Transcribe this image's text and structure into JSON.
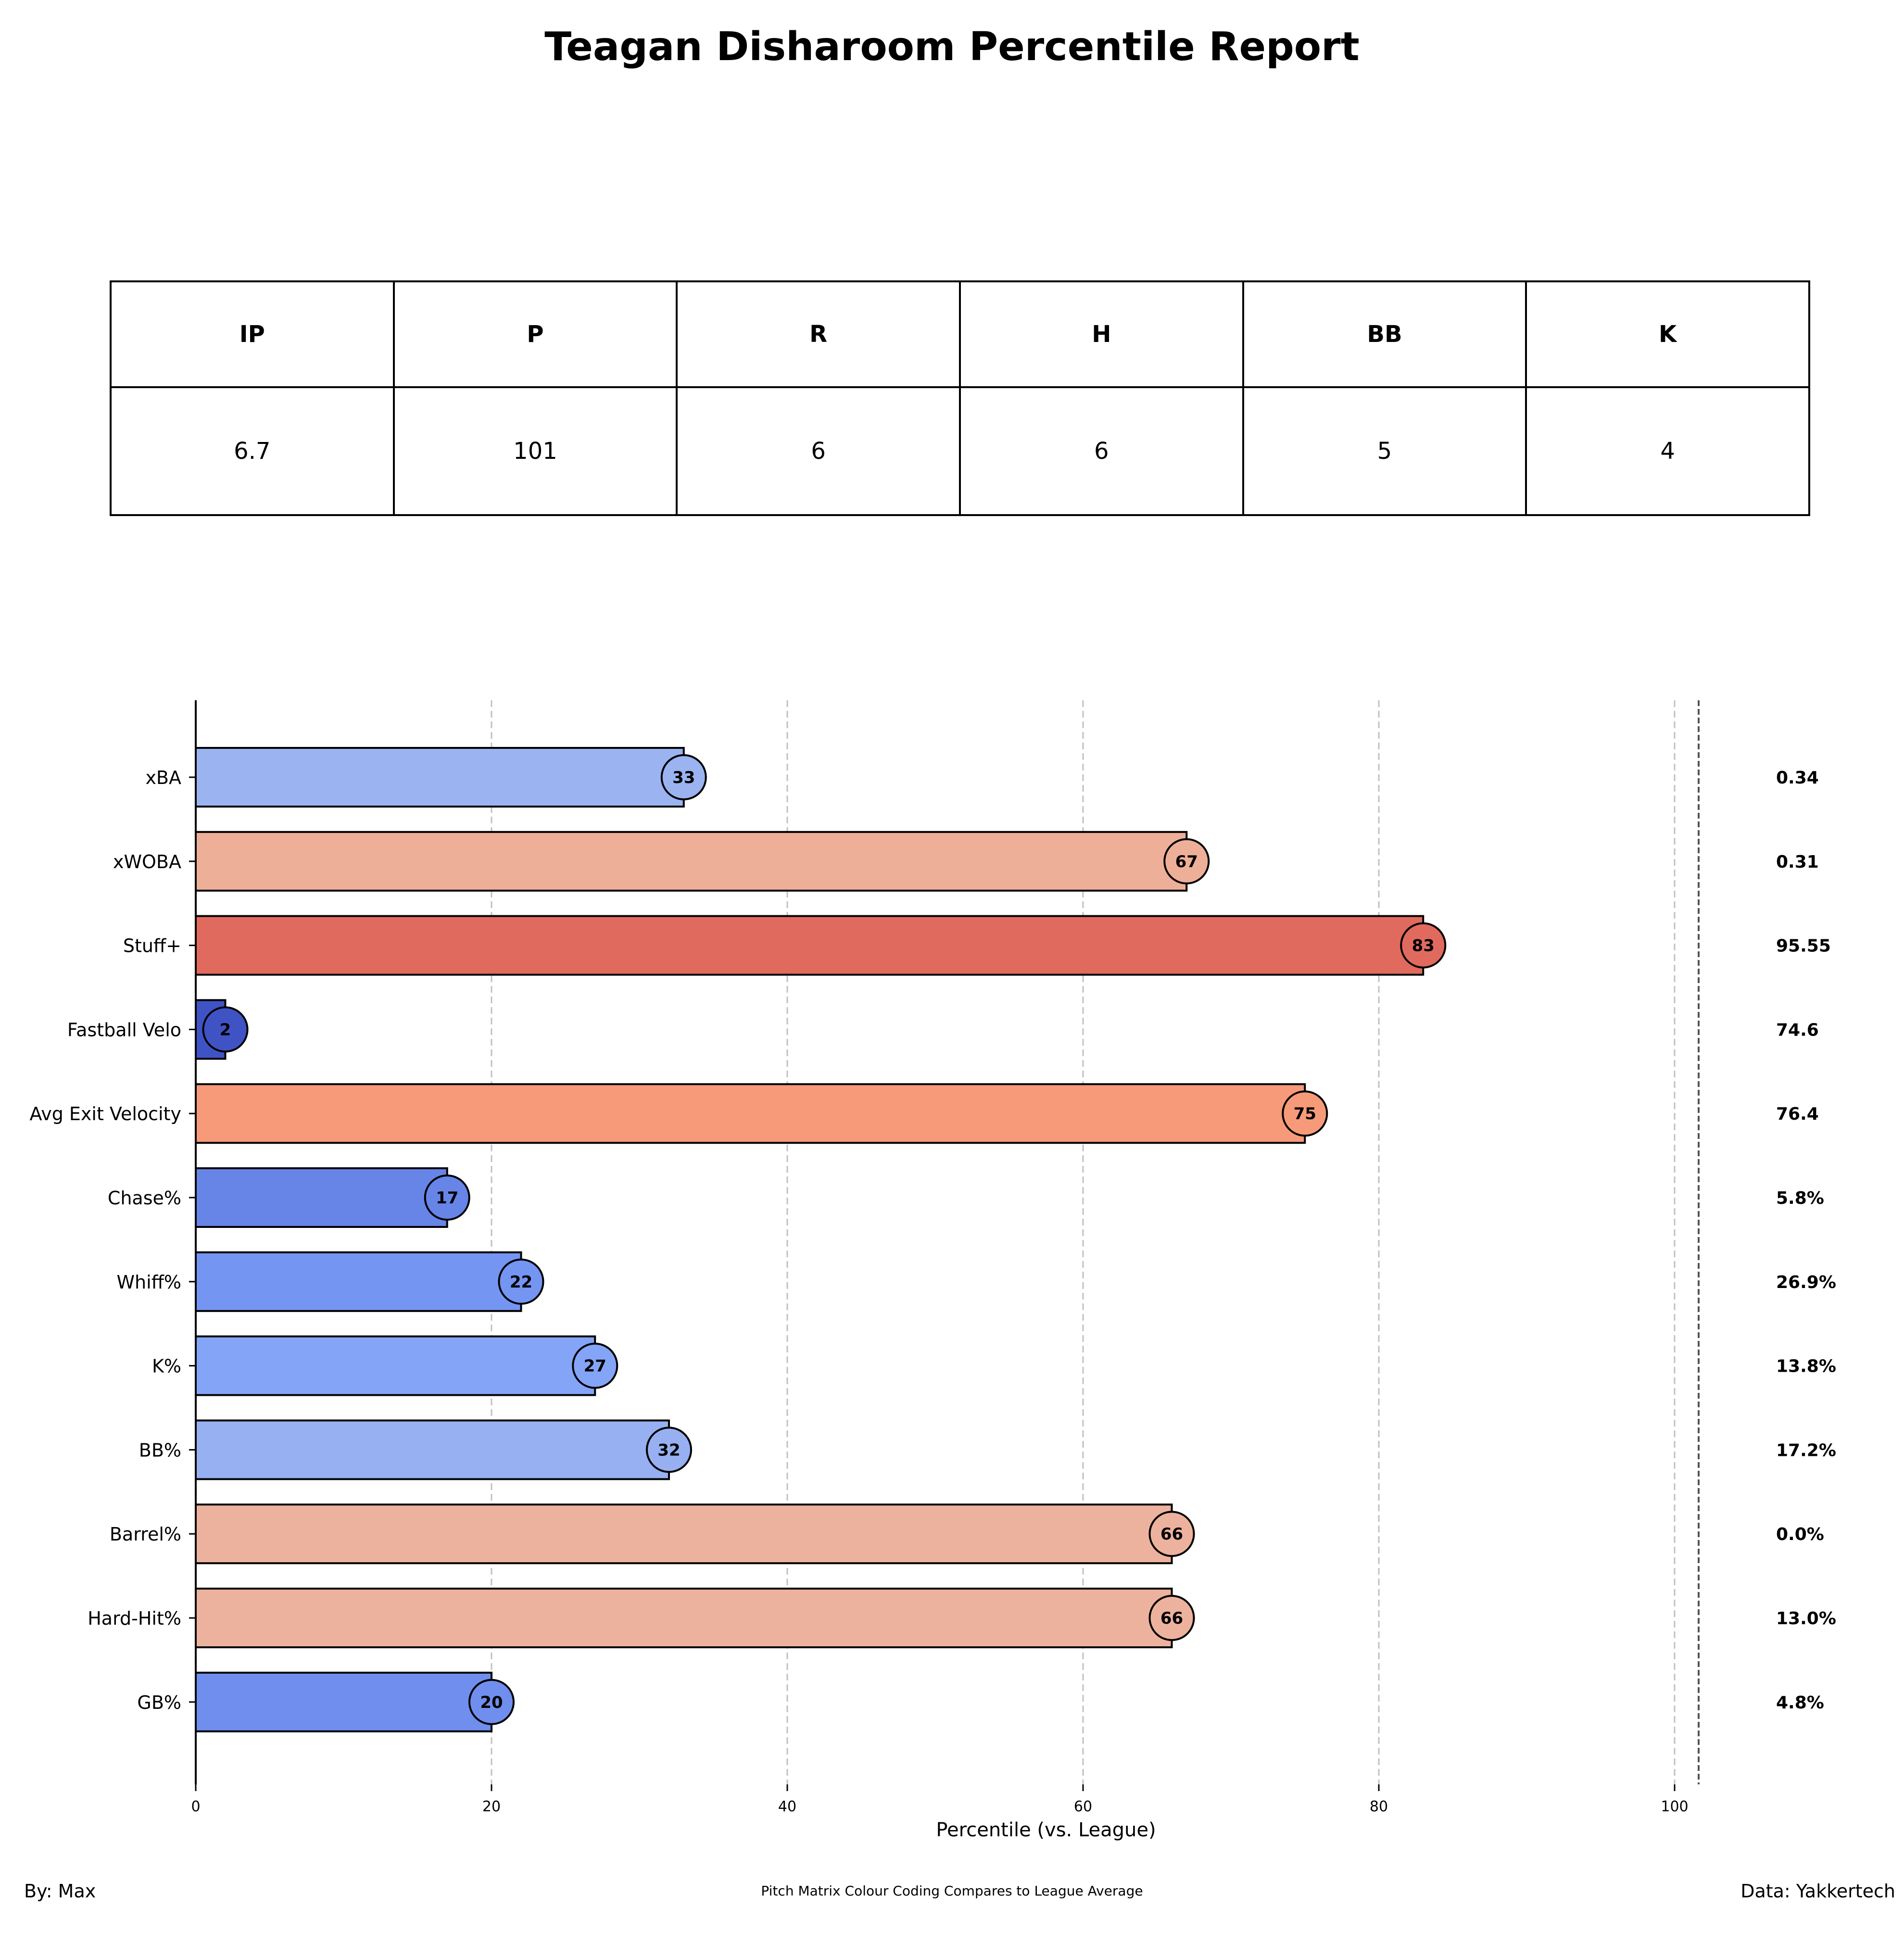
{
  "title": "Teagan Disharoom Percentile Report",
  "stats_table": {
    "headers": [
      "IP",
      "P",
      "R",
      "H",
      "BB",
      "K"
    ],
    "values": [
      "6.7",
      "101",
      "6",
      "6",
      "5",
      "4"
    ]
  },
  "chart_data": {
    "type": "bar",
    "orientation": "horizontal",
    "categories": [
      "xBA",
      "xWOBA",
      "Stuff+",
      "Fastball Velo",
      "Avg Exit Velocity",
      "Chase%",
      "Whiff%",
      "K%",
      "BB%",
      "Barrel%",
      "Hard-Hit%",
      "GB%"
    ],
    "values": [
      33,
      67,
      83,
      2,
      75,
      17,
      22,
      27,
      32,
      66,
      66,
      20
    ],
    "stat_values": [
      "0.34",
      "0.31",
      "95.55",
      "74.6",
      "76.4",
      "5.8%",
      "26.9%",
      "13.8%",
      "17.2%",
      "0.0%",
      "13.0%",
      "4.8%"
    ],
    "xlabel": "Percentile (vs. League)",
    "xlim": [
      0,
      102
    ],
    "xticks": [
      0,
      20,
      40,
      60,
      80,
      100
    ],
    "grid": "vertical dashed",
    "colormap": "coolwarm"
  },
  "footer": {
    "left": "By: Max",
    "center": "Pitch Matrix Colour Coding Compares to League Average",
    "right": "Data: Yakkertech"
  }
}
